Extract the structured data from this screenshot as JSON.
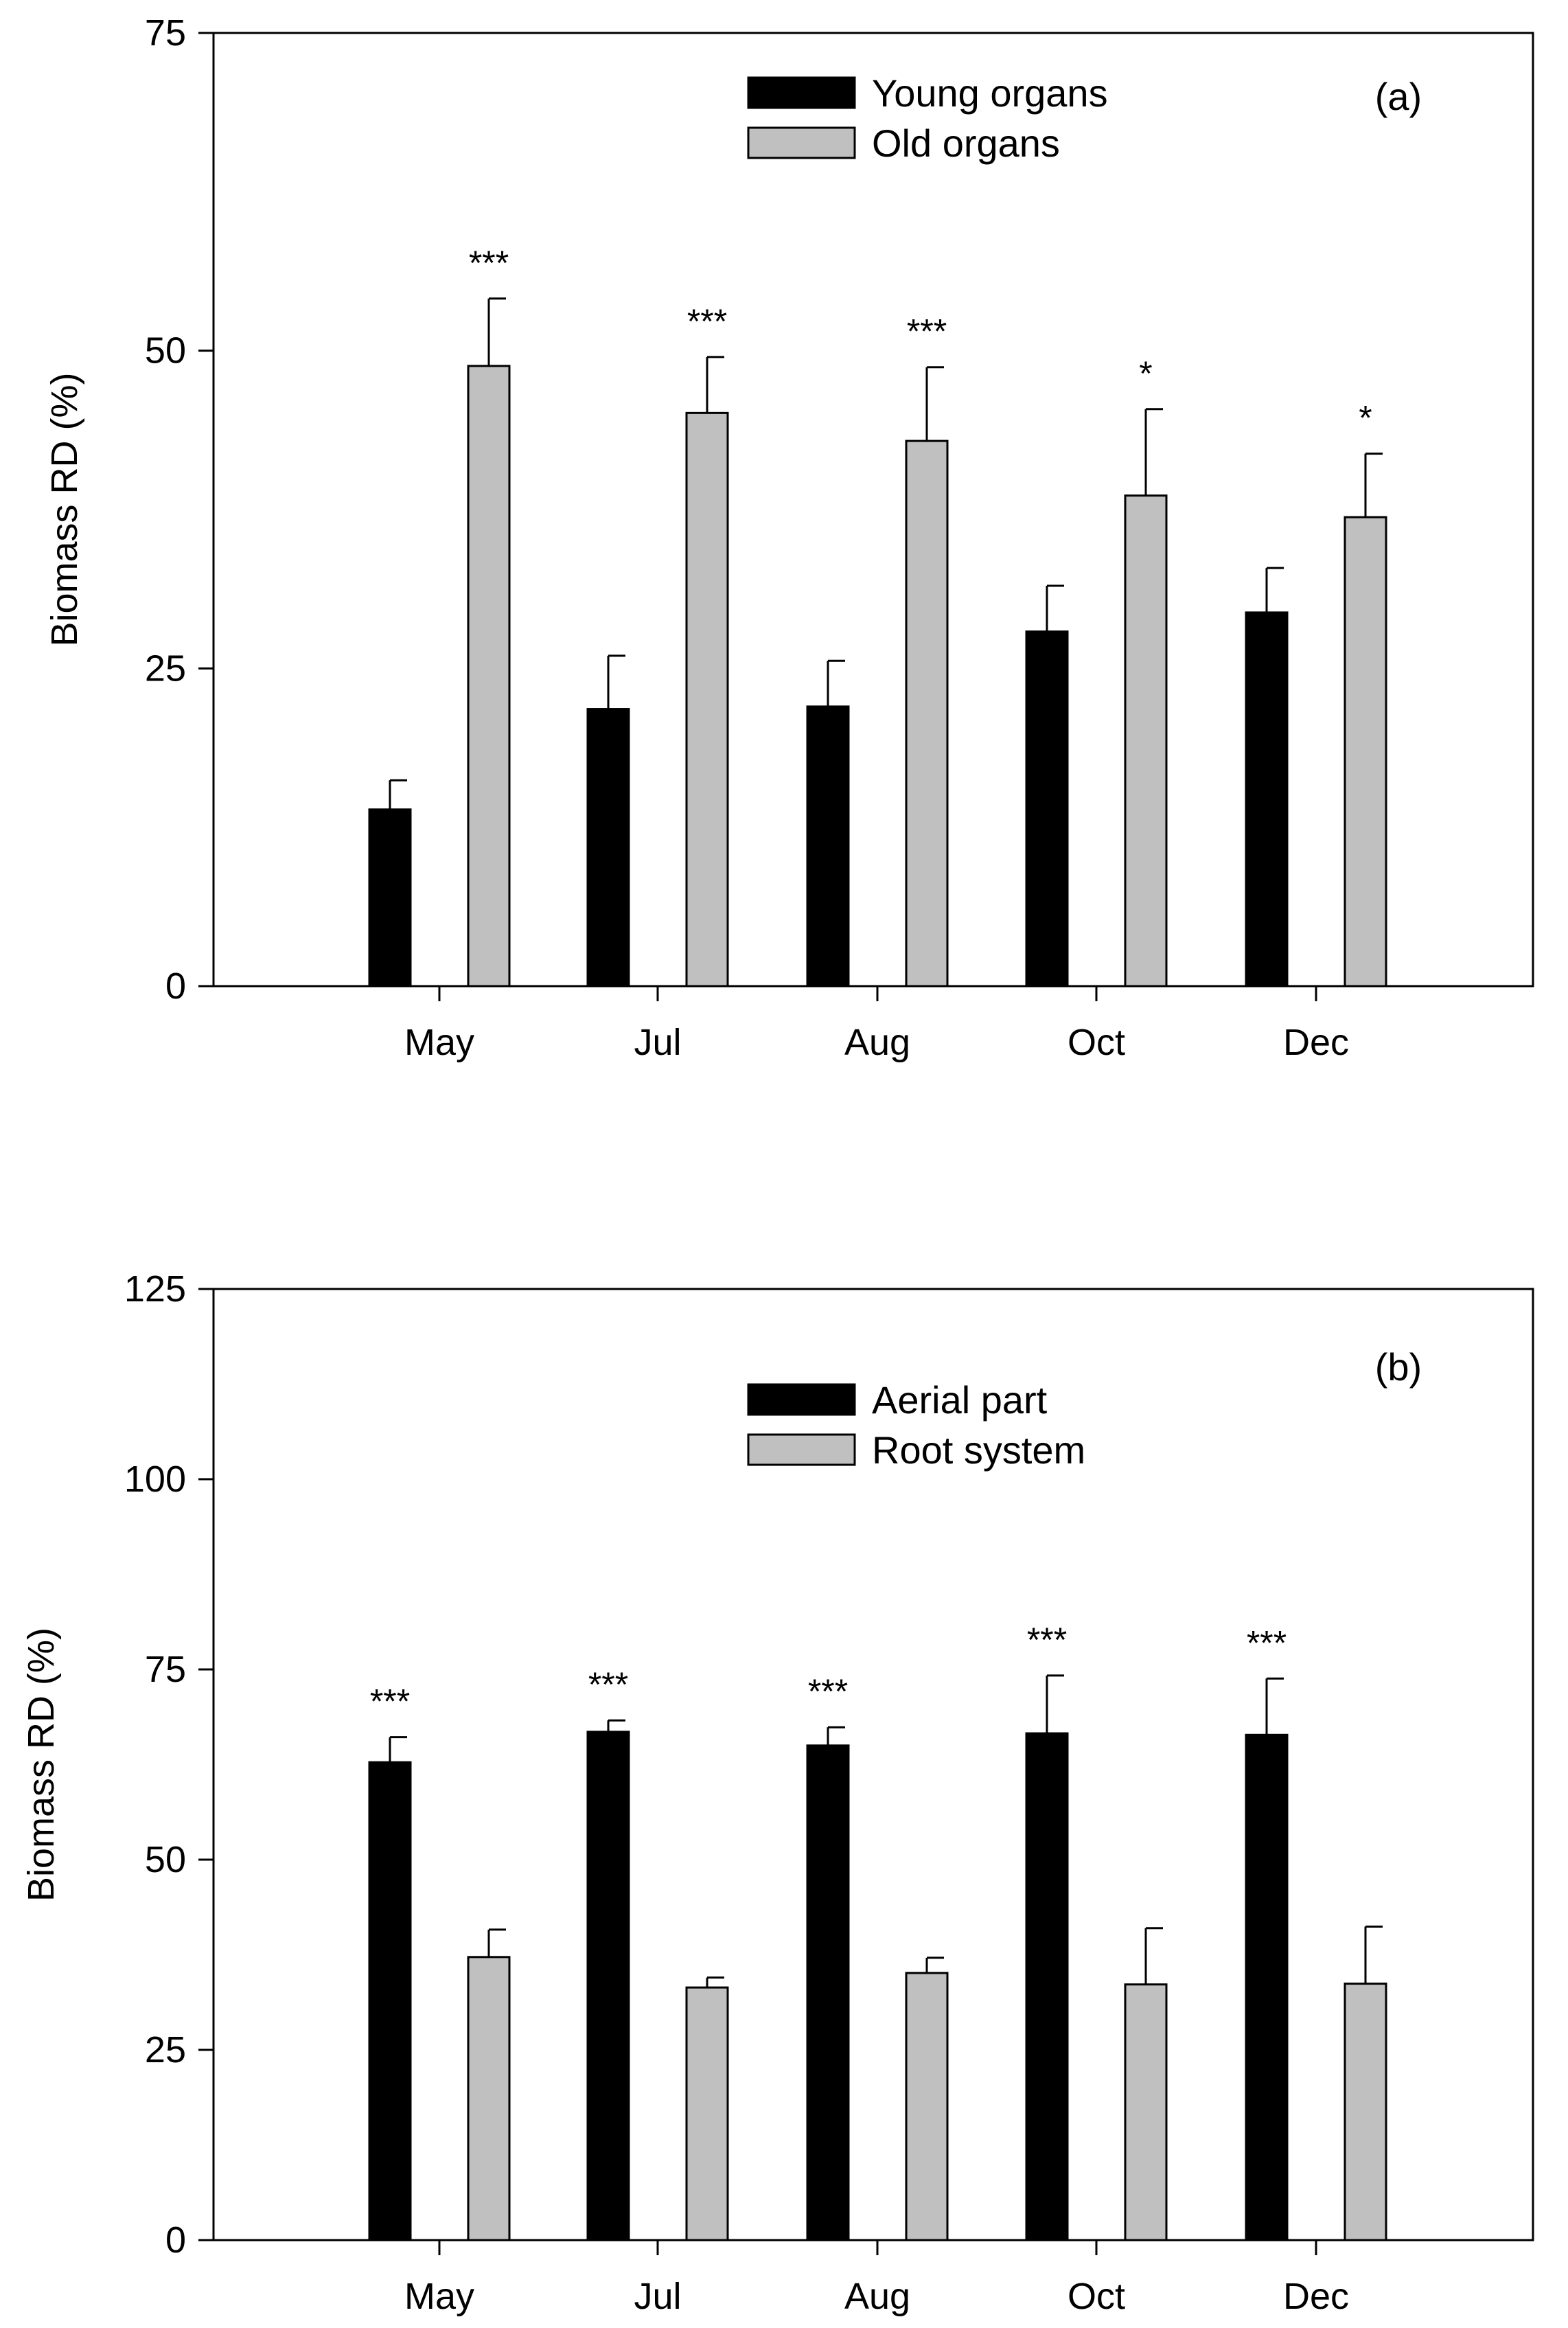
{
  "chart_data": [
    {
      "type": "bar",
      "panel_label": "(a)",
      "title": "",
      "xlabel": "",
      "ylabel": "Biomass RD (%)",
      "ylim": [
        0,
        75
      ],
      "yticks": [
        "0",
        "25",
        "50",
        "75"
      ],
      "categories": [
        "May",
        "Jul",
        "Aug",
        "Oct",
        "Dec"
      ],
      "legend_position": "top-center",
      "series": [
        {
          "name": "Young organs",
          "color": "#000000",
          "values": [
            13.9,
            21.8,
            22.0,
            27.9,
            29.4
          ],
          "errors": [
            2.3,
            4.2,
            3.6,
            3.6,
            3.5
          ]
        },
        {
          "name": "Old organs",
          "color": "#c0c0c0",
          "values": [
            48.8,
            45.1,
            42.9,
            38.6,
            36.9
          ],
          "errors": [
            5.3,
            4.4,
            5.8,
            6.8,
            5.0
          ]
        }
      ],
      "annotations": [
        "***",
        "***",
        "***",
        "*",
        "*"
      ]
    },
    {
      "type": "bar",
      "panel_label": "(b)",
      "title": "",
      "xlabel": "",
      "ylabel": "Biomass RD (%)",
      "ylim": [
        0,
        125
      ],
      "yticks": [
        "0",
        "25",
        "50",
        "75",
        "100",
        "125"
      ],
      "categories": [
        "May",
        "Jul",
        "Aug",
        "Oct",
        "Dec"
      ],
      "legend_position": "top-center",
      "series": [
        {
          "name": "Aerial part",
          "color": "#000000",
          "values": [
            62.8,
            66.8,
            65.0,
            66.6,
            66.4
          ],
          "errors": [
            3.3,
            1.5,
            2.4,
            7.6,
            7.4
          ]
        },
        {
          "name": "Root system",
          "color": "#c0c0c0",
          "values": [
            37.2,
            33.2,
            35.1,
            33.6,
            33.7
          ],
          "errors": [
            3.6,
            1.3,
            2.0,
            7.4,
            7.5
          ]
        }
      ],
      "annotations": [
        "***",
        "***",
        "***",
        "***",
        "***"
      ]
    }
  ]
}
